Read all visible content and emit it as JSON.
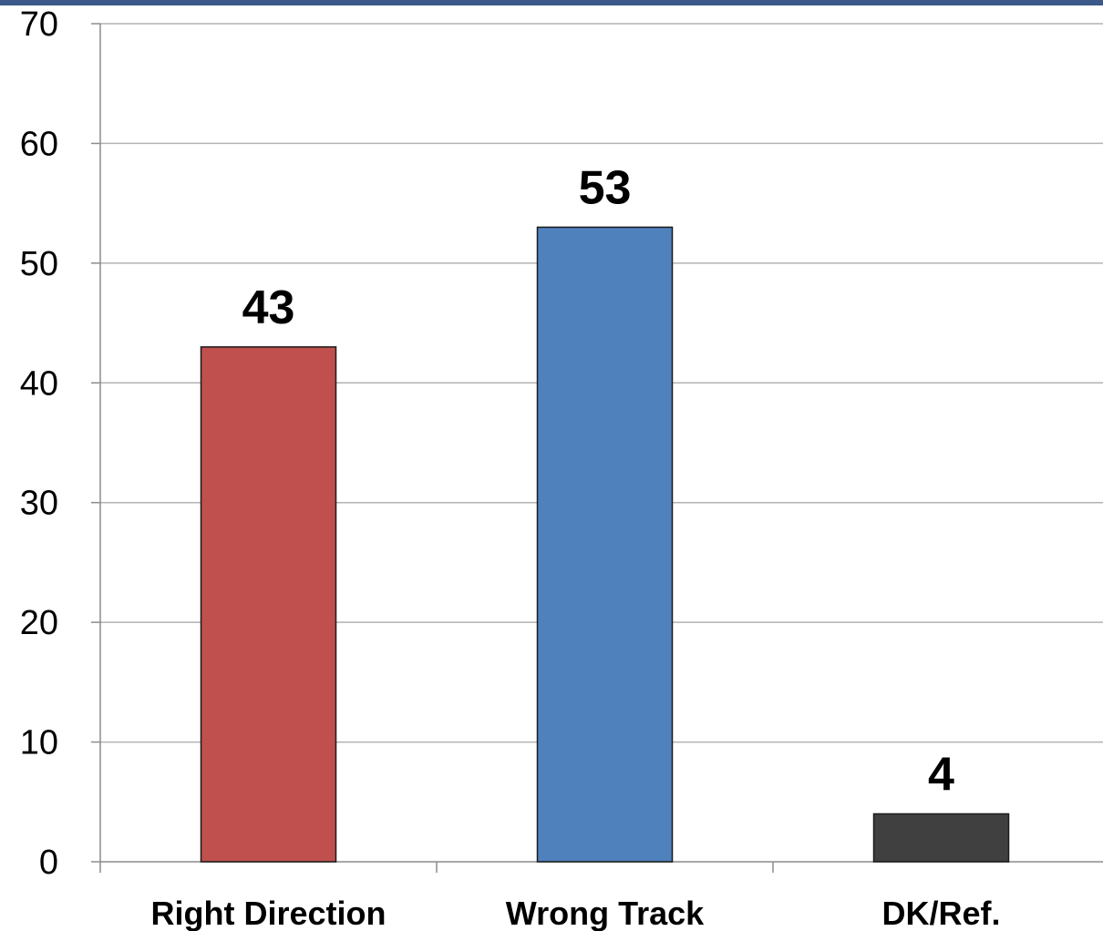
{
  "chart_data": {
    "type": "bar",
    "categories": [
      "Right Direction",
      "Wrong Track",
      "DK/Ref."
    ],
    "values": [
      43,
      53,
      4
    ],
    "data_labels": [
      "43",
      "53",
      "4"
    ],
    "colors": [
      "#c0504d",
      "#4f81bd",
      "#404040"
    ],
    "ylim": [
      0,
      70
    ],
    "yticks": [
      0,
      10,
      20,
      30,
      40,
      50,
      60,
      70
    ],
    "grid": true,
    "legend": "none"
  },
  "style": {
    "top_band_color": "#3b5a8a",
    "grid_color": "#b3b3b3",
    "axis_color": "#8c8c8c"
  }
}
